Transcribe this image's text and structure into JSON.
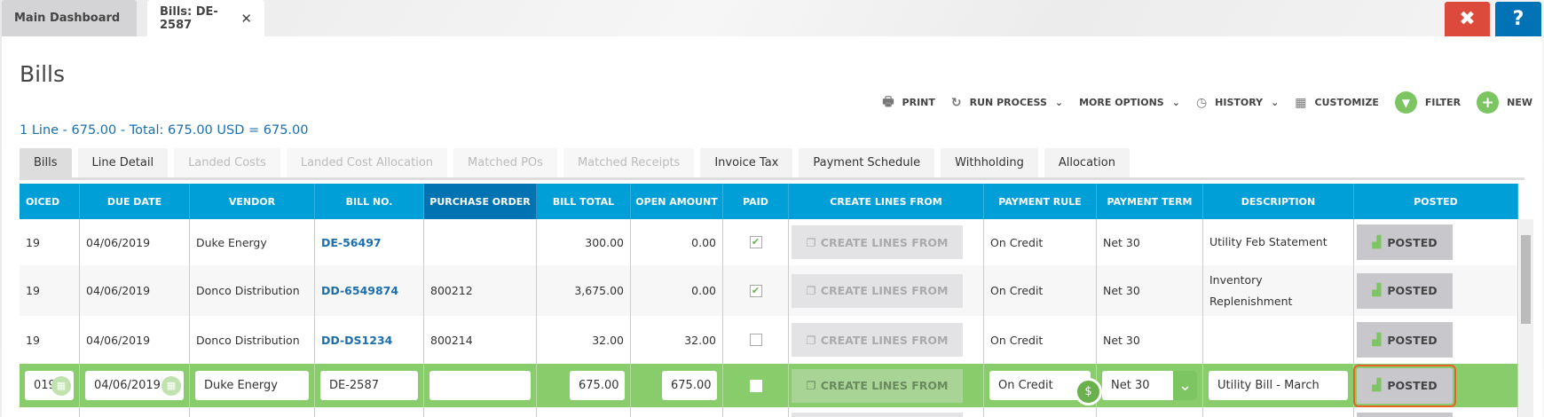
{
  "tabs_top": [
    {
      "label": "Main Dashboard"
    },
    {
      "label": "Bills: DE-2587"
    }
  ],
  "window": {
    "close_label": "✖",
    "help_label": "?"
  },
  "page": {
    "title": "Bills",
    "summary": "1 Line - 675.00 - Total: 675.00 USD = 675.00"
  },
  "toolbar": {
    "print": "PRINT",
    "run_process": "RUN PROCESS",
    "more_options": "MORE OPTIONS",
    "history": "HISTORY",
    "customize": "CUSTOMIZE",
    "filter": "FILTER",
    "new": "NEW"
  },
  "subtabs": [
    {
      "label": "Bills",
      "state": "active"
    },
    {
      "label": "Line Detail",
      "state": "enabled"
    },
    {
      "label": "Landed Costs",
      "state": "disabled"
    },
    {
      "label": "Landed Cost Allocation",
      "state": "disabled"
    },
    {
      "label": "Matched POs",
      "state": "disabled"
    },
    {
      "label": "Matched Receipts",
      "state": "disabled"
    },
    {
      "label": "Invoice Tax",
      "state": "enabled"
    },
    {
      "label": "Payment Schedule",
      "state": "enabled"
    },
    {
      "label": "Withholding",
      "state": "enabled"
    },
    {
      "label": "Allocation",
      "state": "enabled"
    }
  ],
  "columns": [
    "OICED",
    "DUE DATE",
    "VENDOR",
    "BILL NO.",
    "PURCHASE ORDER",
    "BILL TOTAL",
    "OPEN AMOUNT",
    "PAID",
    "CREATE LINES FROM",
    "PAYMENT RULE",
    "PAYMENT TERM",
    "DESCRIPTION",
    "POSTED"
  ],
  "rows": [
    {
      "invoiced": "19",
      "due": "04/06/2019",
      "vendor": "Duke Energy",
      "bill": "DE-56497",
      "po": "",
      "total": "300.00",
      "open": "0.00",
      "paid": true,
      "create": "CREATE LINES FROM",
      "rule": "On Credit",
      "term": "Net 30",
      "desc": "Utility Feb Statement",
      "posted": "POSTED"
    },
    {
      "invoiced": "19",
      "due": "04/06/2019",
      "vendor": "Donco Distribution",
      "bill": "DD-6549874",
      "po": "800212",
      "total": "3,675.00",
      "open": "0.00",
      "paid": true,
      "create": "CREATE LINES FROM",
      "rule": "On Credit",
      "term": "Net 30",
      "desc": "Inventory Replenishment",
      "posted": "POSTED"
    },
    {
      "invoiced": "19",
      "due": "04/06/2019",
      "vendor": "Donco Distribution",
      "bill": "DD-DS1234",
      "po": "800214",
      "total": "32.00",
      "open": "32.00",
      "paid": false,
      "create": "CREATE LINES FROM",
      "rule": "On Credit",
      "term": "Net 30",
      "desc": "",
      "posted": "POSTED"
    }
  ],
  "edit_row": {
    "invoiced": "019",
    "due": "04/06/2019",
    "vendor": "Duke Energy",
    "bill": "DE-2587",
    "po": "",
    "total": "675.00",
    "open": "675.00",
    "paid": false,
    "create": "CREATE LINES FROM",
    "rule": "On Credit",
    "term": "Net 30",
    "desc": "Utility Bill - March",
    "posted": "POSTED"
  },
  "colors": {
    "header": "#019fd8",
    "header_sorted": "#0273b2",
    "edit_row": "#89cc6b",
    "accent_green": "#7dc462",
    "close": "#dc4a3c",
    "help": "#0072b5",
    "highlight": "#e8602c"
  }
}
